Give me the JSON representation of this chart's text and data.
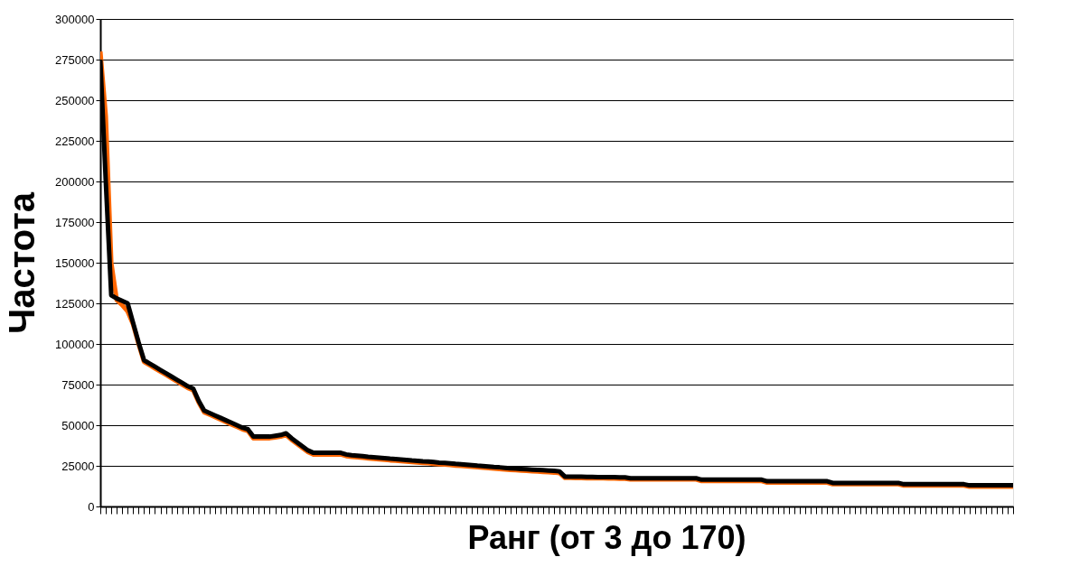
{
  "chart_data": {
    "type": "line",
    "xlabel": "Ранг (от 3 до 170)",
    "ylabel": "Частота",
    "categories": [
      null,
      null,
      null,
      null,
      null,
      null,
      null,
      null,
      null,
      null,
      null,
      null,
      null,
      null,
      null,
      null,
      null,
      null,
      null,
      null,
      null,
      null,
      null,
      null,
      null,
      null,
      null,
      null,
      null,
      null,
      null,
      null,
      null,
      null,
      null,
      null,
      null,
      null,
      null,
      null,
      null,
      null,
      null,
      null,
      null,
      null,
      null,
      null,
      null,
      null,
      null,
      null,
      null,
      null,
      null,
      null,
      null,
      null,
      null,
      null,
      null,
      null,
      null,
      null,
      null,
      null,
      null,
      null,
      null,
      null,
      null,
      null,
      null,
      null,
      null,
      null,
      null,
      null,
      null,
      null,
      null,
      null,
      null,
      null,
      null,
      null,
      null,
      null,
      null,
      null,
      null,
      null,
      null,
      null,
      null,
      null,
      null,
      null,
      null,
      null,
      null,
      null,
      null,
      null,
      null,
      null,
      null,
      null,
      null,
      null,
      null,
      null,
      null,
      null,
      null,
      null,
      null,
      null,
      null,
      null,
      null,
      null,
      null,
      null,
      null,
      null,
      null,
      null,
      null,
      null,
      null,
      null,
      null,
      null,
      null,
      null,
      null,
      null,
      null,
      null,
      null,
      null,
      null,
      null,
      null,
      null,
      null,
      null,
      null,
      null,
      null,
      null,
      null,
      null,
      null,
      null,
      null,
      null,
      null,
      null,
      null,
      null,
      null,
      null,
      null,
      null,
      null,
      null
    ],
    "series": [
      {
        "color": "#ff6600",
        "values": [
          280000,
          240000,
          150000,
          127000,
          124000,
          120000,
          112000,
          100000,
          89000,
          87000,
          85000,
          83000,
          81000,
          79000,
          77000,
          75000,
          73000,
          71500,
          64000,
          58000,
          56500,
          55000,
          53500,
          52000,
          50500,
          49000,
          47500,
          46500,
          42000,
          42000,
          42000,
          42000,
          42500,
          43000,
          44000,
          41000,
          38500,
          36000,
          33500,
          32000,
          32000,
          32000,
          32000,
          32000,
          32000,
          31000,
          30500,
          30300,
          30000,
          29600,
          29300,
          29000,
          28700,
          28400,
          28200,
          27900,
          27600,
          27300,
          27100,
          26800,
          26600,
          26300,
          26000,
          25800,
          25500,
          25200,
          25000,
          24700,
          24400,
          24100,
          23900,
          23600,
          23300,
          23100,
          22800,
          22500,
          22300,
          22100,
          21900,
          21700,
          21500,
          21300,
          21100,
          20900,
          20600,
          17600,
          17600,
          17500,
          17500,
          17400,
          17400,
          17300,
          17300,
          17200,
          17200,
          17100,
          17100,
          16600,
          16600,
          16600,
          16600,
          16600,
          16600,
          16600,
          16600,
          16600,
          16600,
          16600,
          16600,
          16600,
          15700,
          15700,
          15700,
          15700,
          15700,
          15700,
          15700,
          15700,
          15700,
          15700,
          15700,
          15700,
          14700,
          14700,
          14700,
          14700,
          14700,
          14700,
          14700,
          14700,
          14700,
          14700,
          14700,
          14700,
          13700,
          13700,
          13700,
          13700,
          13700,
          13700,
          13700,
          13700,
          13700,
          13700,
          13700,
          13700,
          13700,
          12900,
          12900,
          12900,
          12900,
          12900,
          12900,
          12900,
          12900,
          12900,
          12900,
          12900,
          12900,
          12200,
          12200,
          12200,
          12200,
          12200,
          12200,
          12200,
          12200,
          12200
        ]
      },
      {
        "color": "#000000",
        "values": [
          275000,
          200000,
          130000,
          128000,
          126500,
          125000,
          113000,
          101000,
          90000,
          88000,
          86000,
          84000,
          82000,
          80000,
          78000,
          76000,
          74000,
          72500,
          65000,
          59000,
          57500,
          56000,
          54500,
          53000,
          51500,
          50000,
          48500,
          47500,
          43000,
          43000,
          43000,
          43000,
          43500,
          44000,
          45000,
          42000,
          39500,
          37000,
          34500,
          33000,
          33000,
          33000,
          33000,
          33000,
          33000,
          32000,
          31500,
          31300,
          31000,
          30600,
          30300,
          30000,
          29700,
          29400,
          29200,
          28900,
          28600,
          28300,
          28100,
          27800,
          27600,
          27300,
          27000,
          26800,
          26500,
          26200,
          26000,
          25700,
          25400,
          25100,
          24900,
          24600,
          24300,
          24100,
          23800,
          23500,
          23300,
          23100,
          22900,
          22700,
          22500,
          22300,
          22100,
          21900,
          21600,
          18400,
          18400,
          18300,
          18300,
          18200,
          18200,
          18100,
          18100,
          18000,
          18000,
          17900,
          17900,
          17400,
          17400,
          17400,
          17400,
          17400,
          17400,
          17400,
          17400,
          17400,
          17400,
          17400,
          17400,
          17400,
          16500,
          16500,
          16500,
          16500,
          16500,
          16500,
          16500,
          16500,
          16500,
          16500,
          16500,
          16500,
          15500,
          15500,
          15500,
          15500,
          15500,
          15500,
          15500,
          15500,
          15500,
          15500,
          15500,
          15500,
          14500,
          14500,
          14500,
          14500,
          14500,
          14500,
          14500,
          14500,
          14500,
          14500,
          14500,
          14500,
          14500,
          13700,
          13700,
          13700,
          13700,
          13700,
          13700,
          13700,
          13700,
          13700,
          13700,
          13700,
          13700,
          13000,
          13000,
          13000,
          13000,
          13000,
          13000,
          13000,
          13000,
          13000
        ]
      }
    ],
    "ylim": [
      0,
      300000
    ],
    "yticks": [
      0,
      25000,
      50000,
      75000,
      100000,
      125000,
      150000,
      175000,
      200000,
      225000,
      250000,
      275000,
      300000
    ],
    "grid": "y",
    "tick_labels": "y"
  }
}
